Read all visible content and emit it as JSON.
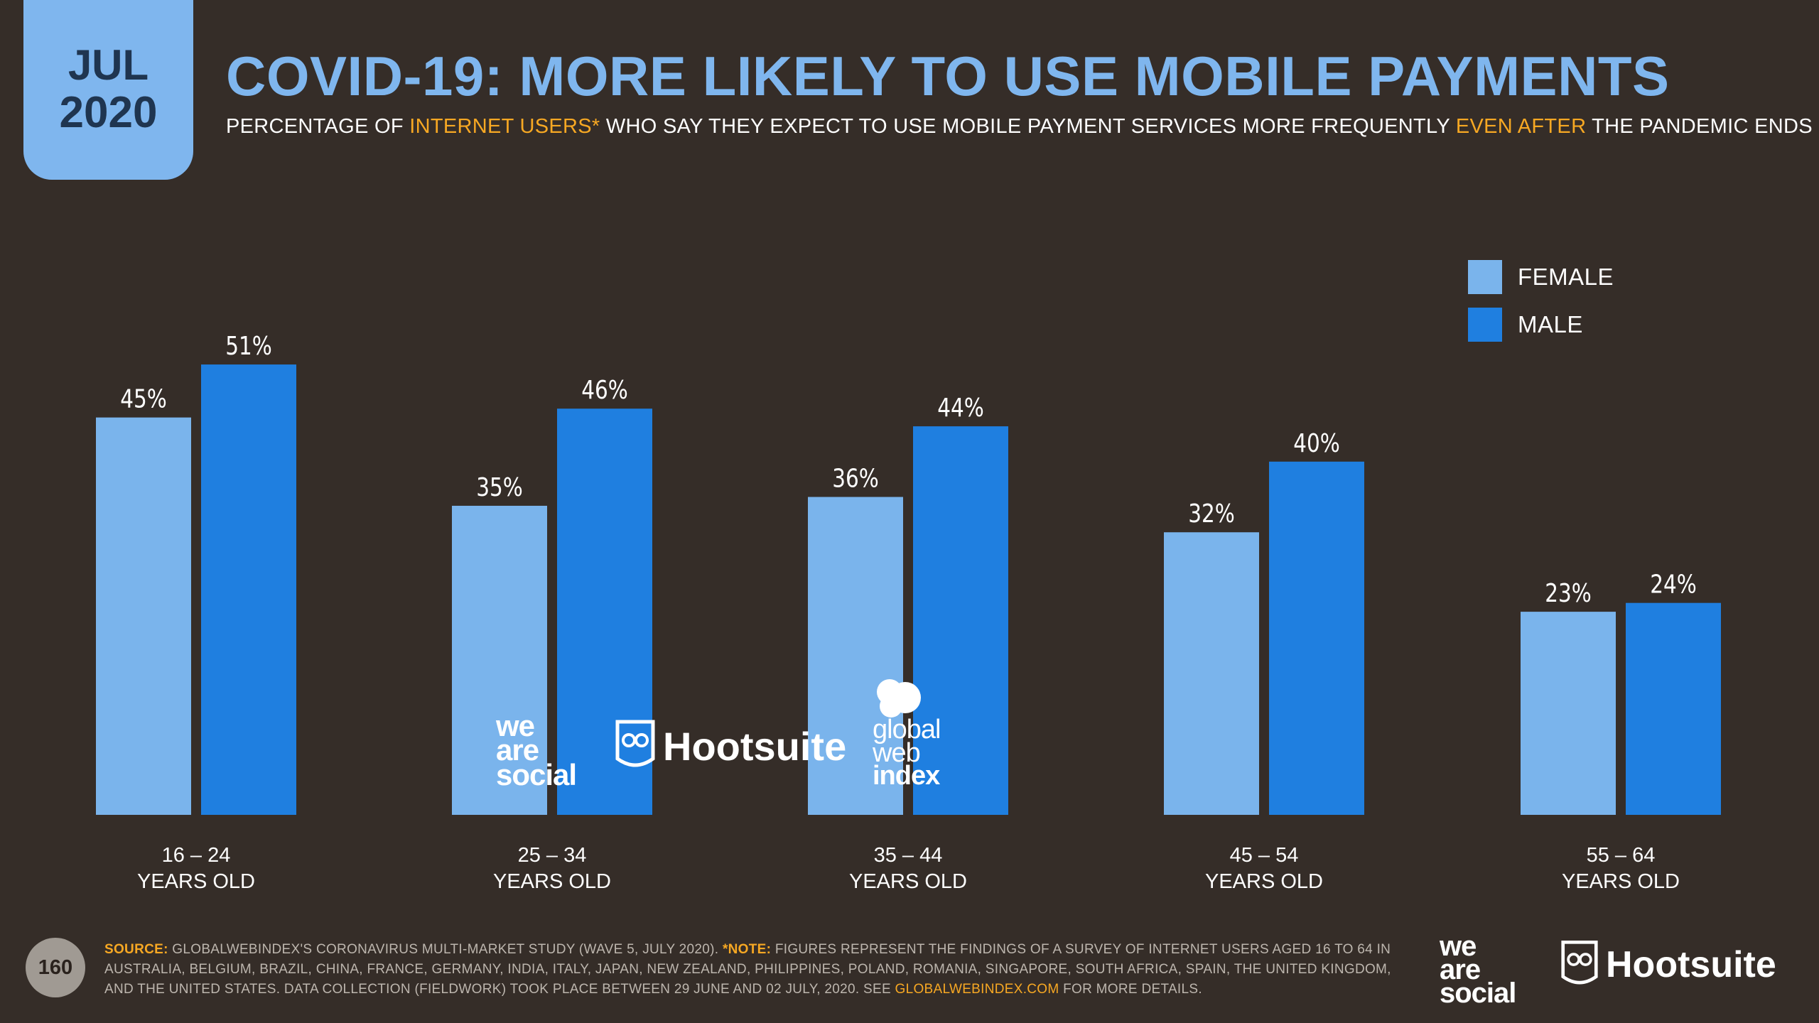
{
  "date_tab": {
    "month": "JUL",
    "year": "2020"
  },
  "header": {
    "title": "COVID-19: MORE LIKELY TO USE MOBILE PAYMENTS",
    "subtitle_parts": [
      "PERCENTAGE OF ",
      "INTERNET USERS*",
      " WHO SAY THEY EXPECT TO USE MOBILE PAYMENT SERVICES MORE FREQUENTLY ",
      "EVEN AFTER",
      " THE PANDEMIC ENDS"
    ]
  },
  "colors": {
    "female": "#7ab4ec",
    "male": "#1f7fe0",
    "accent": "#f7a823",
    "background": "#352d28"
  },
  "chart_data": {
    "type": "bar",
    "title": "COVID-19: MORE LIKELY TO USE MOBILE PAYMENTS",
    "categories": [
      "16 – 24|YEARS OLD",
      "25 – 34|YEARS OLD",
      "35 – 44|YEARS OLD",
      "45 – 54|YEARS OLD",
      "55 – 64|YEARS OLD"
    ],
    "category_lines": [
      [
        "16 – 24",
        "YEARS OLD"
      ],
      [
        "25 – 34",
        "YEARS OLD"
      ],
      [
        "35 – 44",
        "YEARS OLD"
      ],
      [
        "45 – 54",
        "YEARS OLD"
      ],
      [
        "55 – 64",
        "YEARS OLD"
      ]
    ],
    "series": [
      {
        "name": "FEMALE",
        "values": [
          45,
          35,
          36,
          32,
          23
        ]
      },
      {
        "name": "MALE",
        "values": [
          51,
          46,
          44,
          40,
          24
        ]
      }
    ],
    "value_suffix": "%",
    "ylim": [
      0,
      60
    ],
    "grid": false,
    "legend_position": "top-right",
    "xlabel": "",
    "ylabel": ""
  },
  "legend": [
    {
      "label": "FEMALE"
    },
    {
      "label": "MALE"
    }
  ],
  "footer": {
    "page_number": "160",
    "source_label": "SOURCE:",
    "source_text": " GLOBALWEBINDEX'S CORONAVIRUS MULTI-MARKET STUDY (WAVE 5, JULY 2020). ",
    "note_label": "*NOTE:",
    "note_text": " FIGURES REPRESENT THE FINDINGS OF A SURVEY OF INTERNET USERS AGED 16 TO 64 IN AUSTRALIA, BELGIUM, BRAZIL, CHINA, FRANCE, GERMANY, INDIA, ITALY, JAPAN, NEW ZEALAND, PHILIPPINES, POLAND, ROMANIA, SINGAPORE, SOUTH AFRICA, SPAIN, THE UNITED KINGDOM, AND THE UNITED STATES. DATA COLLECTION (FIELDWORK) TOOK PLACE BETWEEN 29 JUNE AND 02 JULY, 2020. SEE ",
    "link_text": "GLOBALWEBINDEX.COM",
    "end_text": " FOR MORE DETAILS."
  },
  "logos": {
    "we_are_social": [
      "we",
      "are",
      "social"
    ],
    "hootsuite": "Hootsuite",
    "globalwebindex": [
      "global",
      "web",
      "index"
    ]
  }
}
